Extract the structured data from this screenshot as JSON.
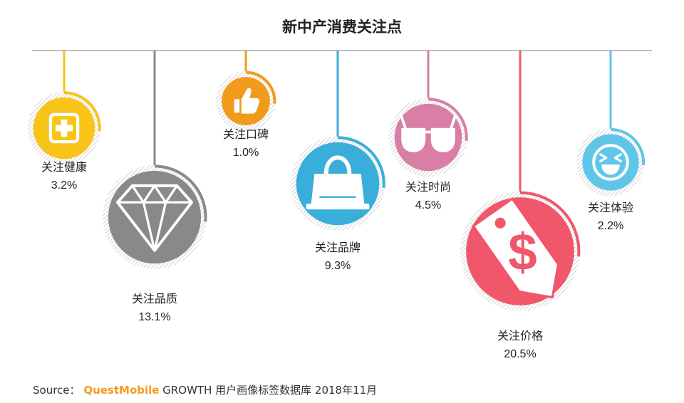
{
  "chart_data": {
    "type": "bubble",
    "title": "新中产消费关注点",
    "categories": [
      "关注健康",
      "关注品质",
      "关注口碑",
      "关注品牌",
      "关注时尚",
      "关注价格",
      "关注体验"
    ],
    "values": [
      3.2,
      13.1,
      1.0,
      9.3,
      4.5,
      20.5,
      2.2
    ],
    "value_labels": [
      "3.2%",
      "13.1%",
      "1.0%",
      "9.3%",
      "4.5%",
      "20.5%",
      "2.2%"
    ],
    "icons": [
      "medical-cross-icon",
      "diamond-icon",
      "thumbs-up-icon",
      "shopping-bag-icon",
      "glasses-icon",
      "price-tag-icon",
      "laughing-face-icon"
    ],
    "colors": [
      "#f7c417",
      "#8b8889",
      "#f09b1c",
      "#3aaedb",
      "#d97ea5",
      "#f0576a",
      "#5fc6ea"
    ]
  },
  "footer": {
    "source_label": "Source：",
    "brand": "QuestMobile",
    "source_text": "GROWTH 用户画像标签数据库 2018年11月"
  }
}
